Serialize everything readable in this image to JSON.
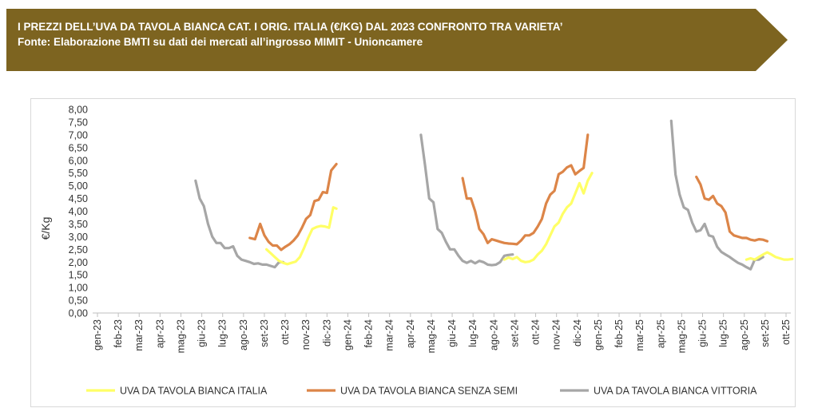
{
  "header": {
    "title": "I PREZZI DELL’UVA DA TAVOLA BIANCA CAT. I ORIG. ITALIA (€/KG) DAL 2023 CONFRONTO TRA VARIETA’",
    "subtitle": "Fonte: Elaborazione BMTI su dati dei mercati all’ingrosso MIMIT - Unioncamere",
    "banner_color": "#7d6420"
  },
  "chart_data": {
    "type": "line",
    "ylabel": "€/Kg",
    "ylim": [
      0,
      8
    ],
    "y_ticks": [
      "0,00",
      "0,50",
      "1,00",
      "1,50",
      "2,00",
      "2,50",
      "3,00",
      "3,50",
      "4,00",
      "4,50",
      "5,00",
      "5,50",
      "6,00",
      "6,50",
      "7,00",
      "7,50",
      "8,00"
    ],
    "categories": [
      "gen-23",
      "feb-23",
      "mar-23",
      "apr-23",
      "mag-23",
      "giu-23",
      "lug-23",
      "ago-23",
      "set-23",
      "ott-23",
      "nov-23",
      "dic-23",
      "gen-24",
      "feb-24",
      "mar-24",
      "apr-24",
      "mag-24",
      "giu-24",
      "lug-24",
      "ago-24",
      "set-24",
      "ott-24",
      "nov-24",
      "dic-24",
      "gen-25",
      "feb-25",
      "mar-25",
      "apr-25",
      "mag-25",
      "giu-25",
      "lug-25",
      "ago-25",
      "set-25",
      "ott-25"
    ],
    "grid": false,
    "legend_position": "bottom",
    "series": [
      {
        "name": "UVA DA TAVOLA BIANCA ITALIA",
        "color": "#ffff66",
        "points": [
          [
            8.1,
            2.5
          ],
          [
            8.3,
            2.35
          ],
          [
            8.5,
            2.2
          ],
          [
            8.7,
            2.05
          ],
          [
            8.9,
            1.97
          ],
          [
            9.1,
            1.92
          ],
          [
            9.3,
            1.97
          ],
          [
            9.5,
            2.02
          ],
          [
            9.7,
            2.2
          ],
          [
            9.9,
            2.55
          ],
          [
            10.1,
            2.95
          ],
          [
            10.3,
            3.3
          ],
          [
            10.5,
            3.38
          ],
          [
            10.7,
            3.42
          ],
          [
            10.9,
            3.4
          ],
          [
            11.1,
            3.35
          ],
          [
            11.3,
            4.15
          ],
          [
            11.45,
            4.1
          ],
          [
            19.5,
            2.1
          ],
          [
            19.7,
            2.18
          ],
          [
            19.9,
            2.12
          ],
          [
            20.1,
            2.2
          ],
          [
            20.3,
            2.05
          ],
          [
            20.5,
            2.0
          ],
          [
            20.7,
            2.02
          ],
          [
            20.9,
            2.1
          ],
          [
            21.1,
            2.3
          ],
          [
            21.3,
            2.45
          ],
          [
            21.5,
            2.7
          ],
          [
            21.7,
            3.05
          ],
          [
            21.9,
            3.4
          ],
          [
            22.1,
            3.55
          ],
          [
            22.3,
            3.9
          ],
          [
            22.5,
            4.15
          ],
          [
            22.7,
            4.3
          ],
          [
            22.9,
            4.7
          ],
          [
            23.1,
            5.1
          ],
          [
            23.3,
            4.7
          ],
          [
            23.5,
            5.2
          ],
          [
            23.7,
            5.5
          ],
          [
            31.1,
            2.1
          ],
          [
            31.3,
            2.15
          ],
          [
            31.5,
            2.1
          ],
          [
            31.7,
            2.2
          ],
          [
            31.9,
            2.3
          ],
          [
            32.1,
            2.38
          ],
          [
            32.3,
            2.3
          ],
          [
            32.5,
            2.2
          ],
          [
            32.7,
            2.15
          ],
          [
            32.9,
            2.1
          ],
          [
            33.1,
            2.1
          ],
          [
            33.3,
            2.12
          ]
        ]
      },
      {
        "name": "UVA DA TAVOLA BIANCA SENZA SEMI",
        "color": "#dc8548",
        "points": [
          [
            7.3,
            2.95
          ],
          [
            7.55,
            2.9
          ],
          [
            7.8,
            3.5
          ],
          [
            8.0,
            3.05
          ],
          [
            8.2,
            2.8
          ],
          [
            8.4,
            2.65
          ],
          [
            8.6,
            2.65
          ],
          [
            8.8,
            2.48
          ],
          [
            9.0,
            2.6
          ],
          [
            9.2,
            2.7
          ],
          [
            9.4,
            2.85
          ],
          [
            9.6,
            3.05
          ],
          [
            9.8,
            3.35
          ],
          [
            10.0,
            3.7
          ],
          [
            10.2,
            3.85
          ],
          [
            10.4,
            4.4
          ],
          [
            10.6,
            4.45
          ],
          [
            10.8,
            4.75
          ],
          [
            11.0,
            4.72
          ],
          [
            11.2,
            5.6
          ],
          [
            11.45,
            5.85
          ],
          [
            17.5,
            5.3
          ],
          [
            17.7,
            4.5
          ],
          [
            17.9,
            4.5
          ],
          [
            18.1,
            4.0
          ],
          [
            18.3,
            3.3
          ],
          [
            18.5,
            3.1
          ],
          [
            18.7,
            2.75
          ],
          [
            18.9,
            2.9
          ],
          [
            19.1,
            2.85
          ],
          [
            19.3,
            2.8
          ],
          [
            19.5,
            2.75
          ],
          [
            19.7,
            2.73
          ],
          [
            19.9,
            2.72
          ],
          [
            20.1,
            2.7
          ],
          [
            20.3,
            2.85
          ],
          [
            20.5,
            3.05
          ],
          [
            20.7,
            3.05
          ],
          [
            20.9,
            3.15
          ],
          [
            21.1,
            3.4
          ],
          [
            21.3,
            3.7
          ],
          [
            21.5,
            4.3
          ],
          [
            21.7,
            4.65
          ],
          [
            21.9,
            4.8
          ],
          [
            22.1,
            5.45
          ],
          [
            22.3,
            5.55
          ],
          [
            22.5,
            5.72
          ],
          [
            22.7,
            5.8
          ],
          [
            22.9,
            5.45
          ],
          [
            23.1,
            5.58
          ],
          [
            23.3,
            5.7
          ],
          [
            23.5,
            7.0
          ],
          [
            28.7,
            5.35
          ],
          [
            28.9,
            5.05
          ],
          [
            29.1,
            4.5
          ],
          [
            29.3,
            4.45
          ],
          [
            29.5,
            4.6
          ],
          [
            29.7,
            4.3
          ],
          [
            29.9,
            4.2
          ],
          [
            30.1,
            3.95
          ],
          [
            30.3,
            3.2
          ],
          [
            30.5,
            3.05
          ],
          [
            30.7,
            3.0
          ],
          [
            30.9,
            2.95
          ],
          [
            31.1,
            2.95
          ],
          [
            31.3,
            2.88
          ],
          [
            31.5,
            2.85
          ],
          [
            31.7,
            2.9
          ],
          [
            31.9,
            2.88
          ],
          [
            32.1,
            2.82
          ]
        ]
      },
      {
        "name": "UVA DA TAVOLA BIANCA VITTORIA",
        "color": "#a6a6a6",
        "points": [
          [
            4.7,
            5.2
          ],
          [
            4.9,
            4.5
          ],
          [
            5.1,
            4.2
          ],
          [
            5.3,
            3.5
          ],
          [
            5.5,
            3.0
          ],
          [
            5.7,
            2.75
          ],
          [
            5.9,
            2.75
          ],
          [
            6.1,
            2.55
          ],
          [
            6.3,
            2.55
          ],
          [
            6.5,
            2.62
          ],
          [
            6.7,
            2.25
          ],
          [
            6.9,
            2.1
          ],
          [
            7.1,
            2.05
          ],
          [
            7.3,
            2.0
          ],
          [
            7.5,
            1.93
          ],
          [
            7.7,
            1.95
          ],
          [
            7.9,
            1.9
          ],
          [
            8.1,
            1.9
          ],
          [
            8.3,
            1.85
          ],
          [
            8.5,
            1.8
          ],
          [
            8.7,
            2.0
          ],
          [
            8.9,
            2.0
          ],
          [
            15.5,
            7.0
          ],
          [
            15.7,
            5.8
          ],
          [
            15.9,
            4.5
          ],
          [
            16.1,
            4.35
          ],
          [
            16.3,
            3.3
          ],
          [
            16.5,
            3.15
          ],
          [
            16.7,
            2.8
          ],
          [
            16.9,
            2.5
          ],
          [
            17.1,
            2.5
          ],
          [
            17.3,
            2.25
          ],
          [
            17.5,
            2.05
          ],
          [
            17.7,
            1.97
          ],
          [
            17.9,
            2.05
          ],
          [
            18.1,
            1.95
          ],
          [
            18.3,
            2.05
          ],
          [
            18.5,
            2.0
          ],
          [
            18.7,
            1.9
          ],
          [
            18.9,
            1.88
          ],
          [
            19.1,
            1.9
          ],
          [
            19.3,
            2.0
          ],
          [
            19.5,
            2.25
          ],
          [
            19.7,
            2.28
          ],
          [
            19.9,
            2.3
          ],
          [
            27.5,
            7.55
          ],
          [
            27.7,
            5.45
          ],
          [
            27.9,
            4.65
          ],
          [
            28.1,
            4.15
          ],
          [
            28.3,
            4.05
          ],
          [
            28.5,
            3.55
          ],
          [
            28.7,
            3.2
          ],
          [
            28.9,
            3.25
          ],
          [
            29.1,
            3.5
          ],
          [
            29.3,
            3.05
          ],
          [
            29.5,
            3.0
          ],
          [
            29.7,
            2.6
          ],
          [
            29.9,
            2.4
          ],
          [
            30.1,
            2.3
          ],
          [
            30.3,
            2.2
          ],
          [
            30.5,
            2.08
          ],
          [
            30.7,
            1.97
          ],
          [
            30.9,
            1.9
          ],
          [
            31.1,
            1.8
          ],
          [
            31.3,
            1.72
          ],
          [
            31.5,
            2.1
          ],
          [
            31.7,
            2.1
          ],
          [
            31.9,
            2.2
          ]
        ]
      }
    ]
  }
}
